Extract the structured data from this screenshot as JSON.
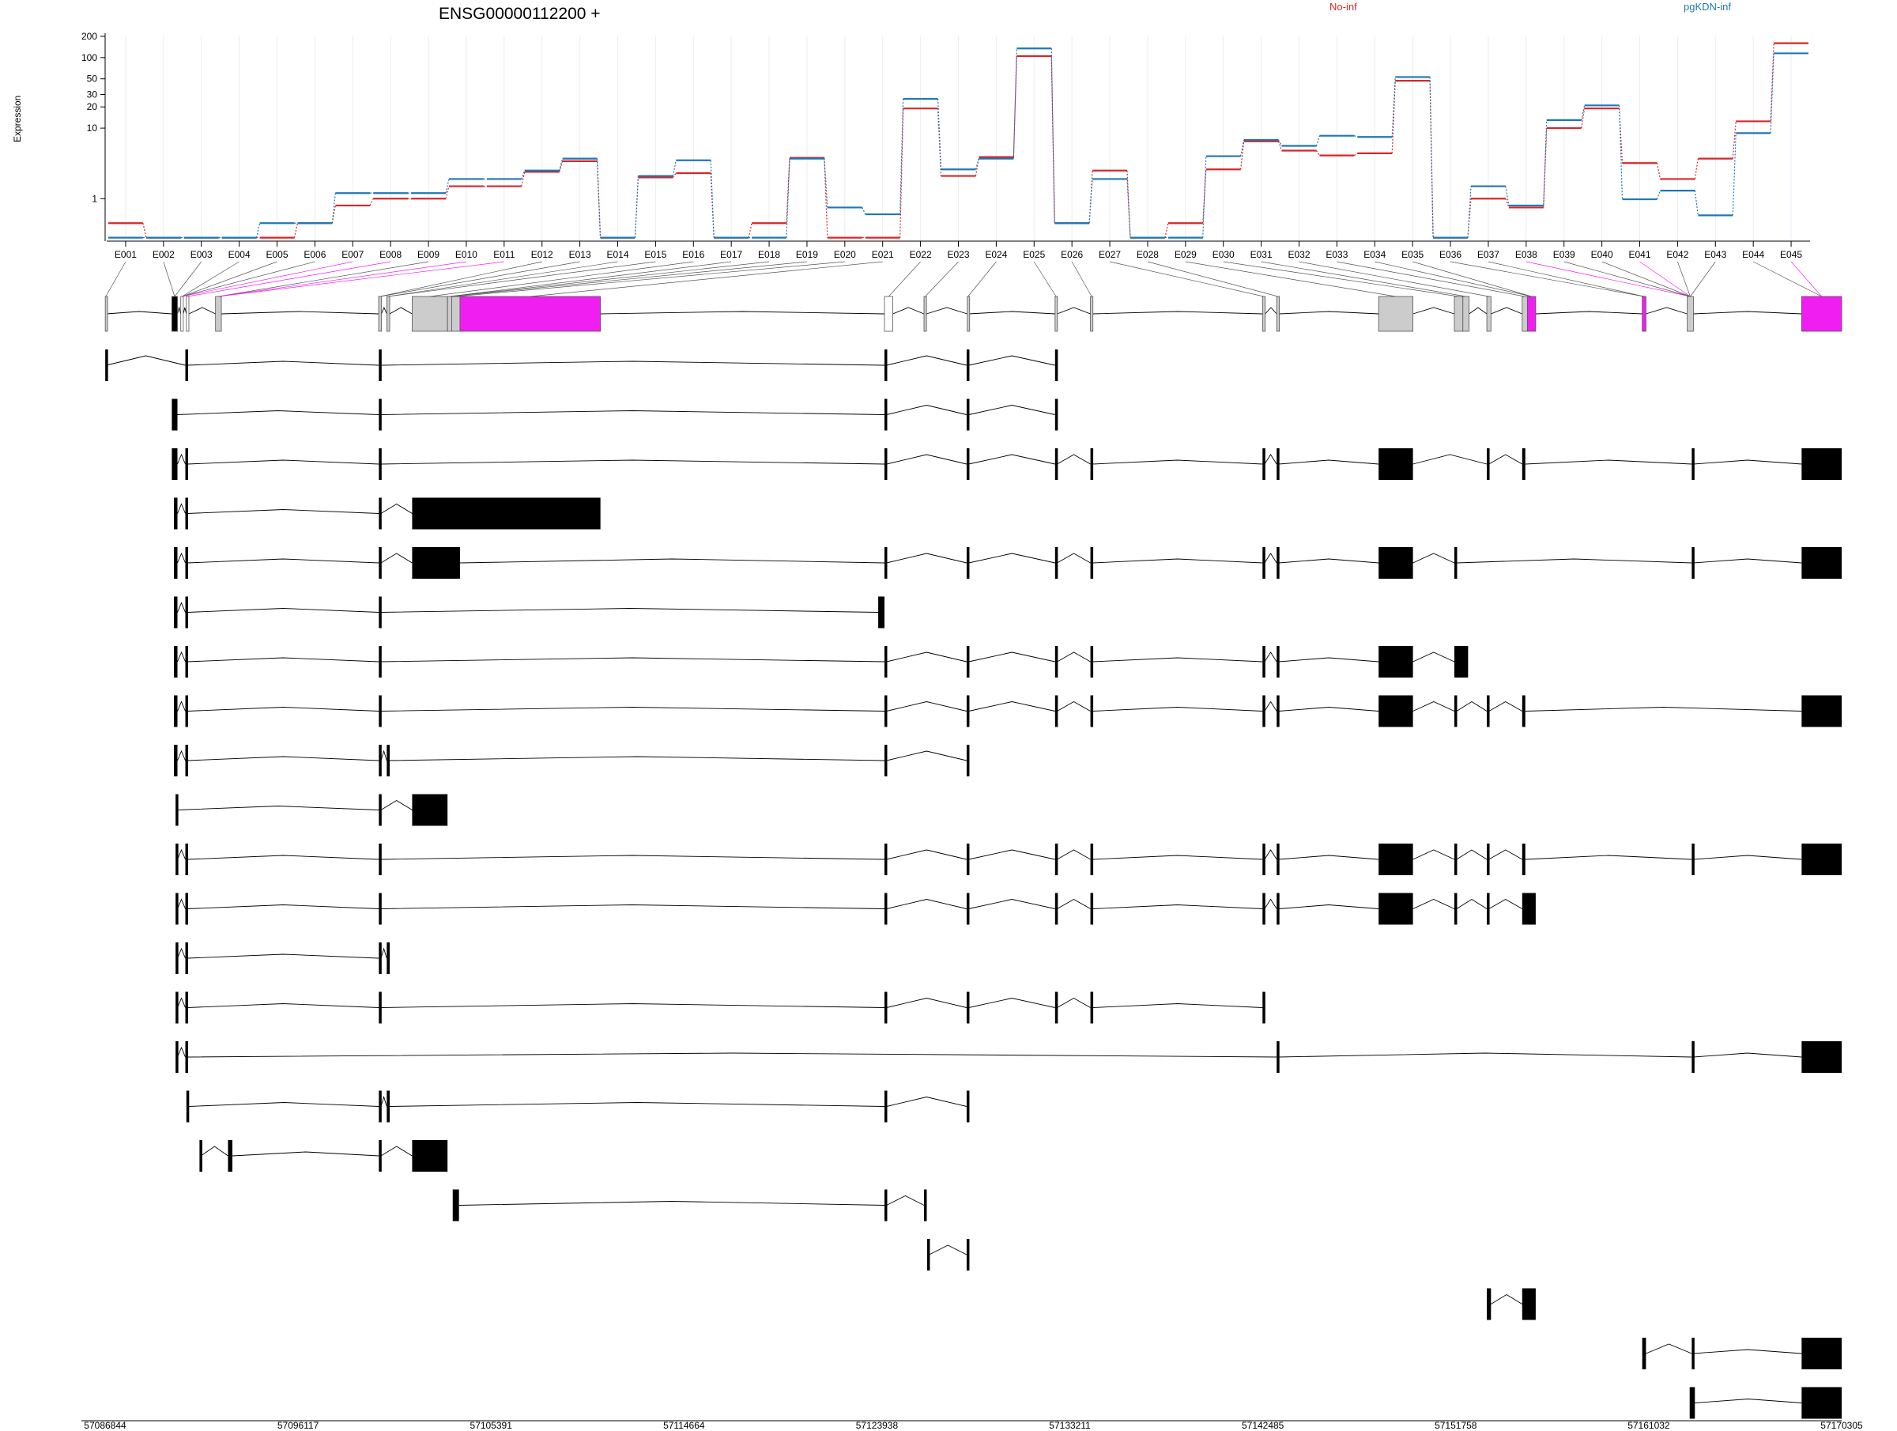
{
  "title": "ENSG00000112200 +",
  "y_axis_label": "Expression",
  "legend": [
    {
      "name": "No-inf",
      "color": "#d62728"
    },
    {
      "name": "pgKDN-inf",
      "color": "#1f77b4"
    }
  ],
  "highlight_color": "#f01ef0",
  "gene_model_fill": "#cccccc",
  "chart_data": {
    "type": "line",
    "scale": "log",
    "ylabel": "Expression",
    "y_ticks": [
      1,
      10,
      20,
      30,
      50,
      100,
      200
    ],
    "ylim": [
      0.25,
      200
    ],
    "categories": [
      "E001",
      "E002",
      "E003",
      "E004",
      "E005",
      "E006",
      "E007",
      "E008",
      "E009",
      "E010",
      "E011",
      "E012",
      "E013",
      "E014",
      "E015",
      "E016",
      "E017",
      "E018",
      "E019",
      "E020",
      "E021",
      "E022",
      "E023",
      "E024",
      "E025",
      "E026",
      "E027",
      "E028",
      "E029",
      "E030",
      "E031",
      "E032",
      "E033",
      "E034",
      "E035",
      "E036",
      "E037",
      "E038",
      "E039",
      "E040",
      "E041",
      "E042",
      "E043",
      "E044",
      "E045"
    ],
    "series": [
      {
        "name": "No-inf",
        "color": "#d62728",
        "values": [
          0.45,
          0.28,
          0.28,
          0.28,
          0.28,
          0.45,
          0.8,
          1,
          1,
          1.5,
          1.5,
          2.4,
          3.4,
          0.28,
          2,
          2.3,
          0.28,
          0.45,
          3.8,
          0.28,
          0.28,
          19,
          2.1,
          3.9,
          105,
          0.45,
          2.5,
          0.28,
          0.45,
          2.6,
          6.5,
          4.8,
          4.1,
          4.4,
          47,
          0.28,
          1,
          0.75,
          10,
          19,
          3.2,
          1.9,
          3.7,
          12.5,
          160
        ]
      },
      {
        "name": "pgKDN-inf",
        "color": "#1f77b4",
        "values": [
          0.28,
          0.28,
          0.28,
          0.28,
          0.45,
          0.45,
          1.2,
          1.2,
          1.2,
          1.9,
          1.9,
          2.5,
          3.7,
          0.28,
          2.1,
          3.5,
          0.28,
          0.28,
          3.7,
          0.75,
          0.6,
          26,
          2.6,
          3.7,
          135,
          0.45,
          1.9,
          0.28,
          0.28,
          4,
          6.8,
          5.6,
          7.8,
          7.5,
          53,
          0.28,
          1.5,
          0.8,
          13,
          21,
          0.98,
          1.3,
          0.58,
          8.5,
          115
        ]
      }
    ]
  },
  "exon_labels": [
    "E001",
    "E002",
    "E003",
    "E004",
    "E005",
    "E006",
    "E007",
    "E008",
    "E009",
    "E010",
    "E011",
    "E012",
    "E013",
    "E014",
    "E015",
    "E016",
    "E017",
    "E018",
    "E019",
    "E020",
    "E021",
    "E022",
    "E023",
    "E024",
    "E025",
    "E026",
    "E027",
    "E028",
    "E029",
    "E030",
    "E031",
    "E032",
    "E033",
    "E034",
    "E035",
    "E036",
    "E037",
    "E038",
    "E039",
    "E040",
    "E041",
    "E042",
    "E043",
    "E044",
    "E045"
  ],
  "highlighted_exons": [
    "E007",
    "E008",
    "E010",
    "E011",
    "E038",
    "E041",
    "E045"
  ],
  "genomic_coordinates": [
    "57086844",
    "57096117",
    "57105391",
    "57114664",
    "57123938",
    "57133211",
    "57142485",
    "57151758",
    "57161032",
    "57170305"
  ],
  "transcript_count": 22
}
